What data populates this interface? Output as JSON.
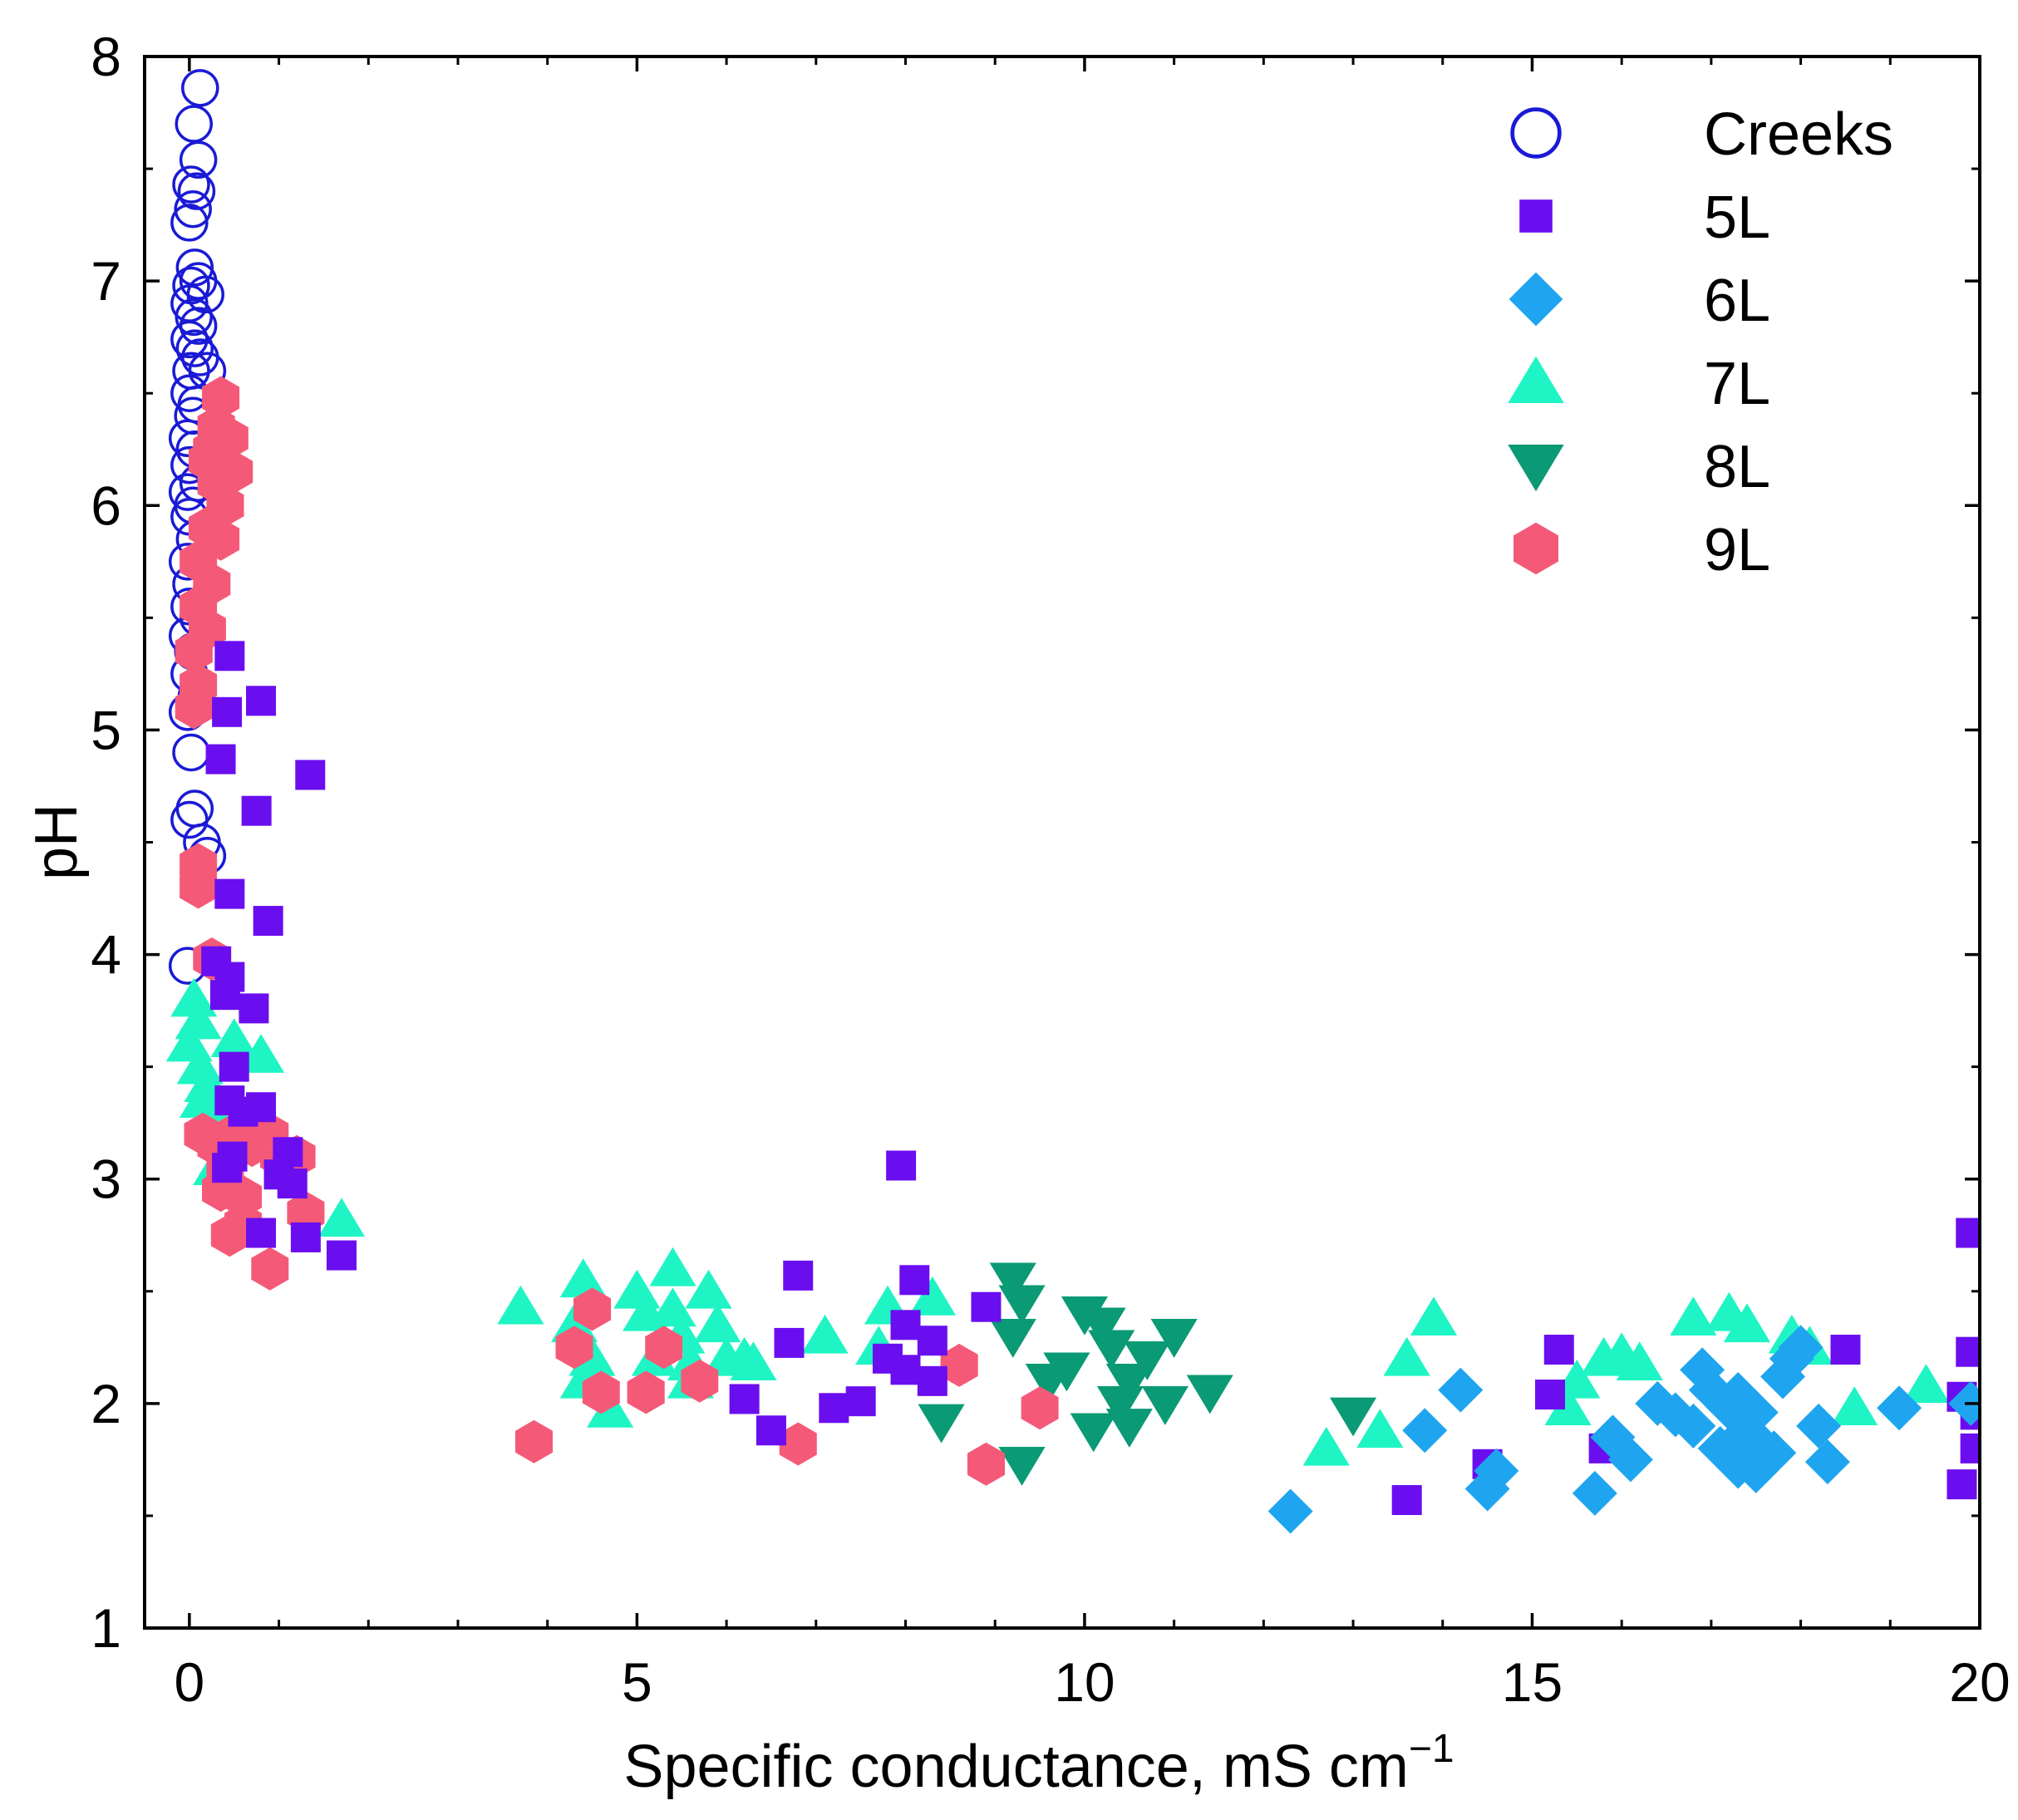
{
  "chart_data": {
    "type": "scatter",
    "title": "",
    "xlabel": "Specific conductance, mS cm",
    "xlabel_superscript": "−1",
    "ylabel": "pH",
    "xlim": [
      -0.5,
      20
    ],
    "ylim": [
      1,
      8
    ],
    "xticks": [
      0,
      5,
      10,
      15,
      20
    ],
    "yticks": [
      1,
      2,
      3,
      4,
      5,
      6,
      7,
      8
    ],
    "x_tick_labels": [
      "0",
      "5",
      "10",
      "15",
      "20"
    ],
    "y_tick_labels": [
      "1",
      "2",
      "3",
      "4",
      "5",
      "6",
      "7",
      "8"
    ],
    "legend_position": "top-right",
    "series": [
      {
        "name": "Creeks",
        "marker": "circle-open",
        "color": "#1a1ad6",
        "points": [
          [
            0.12,
            7.86
          ],
          [
            0.05,
            7.7
          ],
          [
            0.1,
            7.54
          ],
          [
            0.02,
            7.43
          ],
          [
            0.08,
            7.4
          ],
          [
            0.04,
            7.32
          ],
          [
            0.0,
            7.26
          ],
          [
            0.06,
            7.06
          ],
          [
            0.1,
            7.0
          ],
          [
            0.02,
            6.98
          ],
          [
            0.18,
            6.94
          ],
          [
            0.0,
            6.9
          ],
          [
            0.05,
            6.84
          ],
          [
            0.1,
            6.8
          ],
          [
            0.0,
            6.74
          ],
          [
            0.06,
            6.7
          ],
          [
            0.12,
            6.66
          ],
          [
            0.02,
            6.6
          ],
          [
            0.2,
            6.6
          ],
          [
            0.0,
            6.5
          ],
          [
            0.08,
            6.45
          ],
          [
            0.04,
            6.4
          ],
          [
            -0.02,
            6.3
          ],
          [
            0.06,
            6.25
          ],
          [
            0.0,
            6.18
          ],
          [
            0.1,
            6.1
          ],
          [
            -0.02,
            6.06
          ],
          [
            0.04,
            6.0
          ],
          [
            0.0,
            5.95
          ],
          [
            0.06,
            5.85
          ],
          [
            -0.02,
            5.75
          ],
          [
            0.02,
            5.65
          ],
          [
            0.0,
            5.55
          ],
          [
            0.1,
            5.5
          ],
          [
            -0.02,
            5.42
          ],
          [
            0.04,
            5.35
          ],
          [
            0.0,
            5.25
          ],
          [
            0.08,
            5.15
          ],
          [
            -0.02,
            5.08
          ],
          [
            0.02,
            4.9
          ],
          [
            0.06,
            4.65
          ],
          [
            0.0,
            4.6
          ],
          [
            0.14,
            4.5
          ],
          [
            0.2,
            4.44
          ],
          [
            -0.02,
            3.95
          ]
        ]
      },
      {
        "name": "5L",
        "marker": "square",
        "color": "#6a0ef0",
        "points": [
          [
            0.45,
            5.33
          ],
          [
            0.42,
            5.08
          ],
          [
            0.8,
            5.13
          ],
          [
            0.35,
            4.87
          ],
          [
            1.35,
            4.8
          ],
          [
            0.75,
            4.64
          ],
          [
            0.45,
            4.27
          ],
          [
            0.88,
            4.15
          ],
          [
            0.3,
            3.97
          ],
          [
            0.45,
            3.9
          ],
          [
            0.4,
            3.82
          ],
          [
            0.72,
            3.76
          ],
          [
            0.5,
            3.5
          ],
          [
            0.45,
            3.35
          ],
          [
            0.6,
            3.3
          ],
          [
            0.48,
            3.1
          ],
          [
            0.8,
            3.32
          ],
          [
            1.1,
            3.12
          ],
          [
            0.42,
            3.05
          ],
          [
            1.0,
            3.02
          ],
          [
            1.15,
            2.98
          ],
          [
            0.8,
            2.76
          ],
          [
            1.3,
            2.74
          ],
          [
            1.7,
            2.66
          ],
          [
            7.95,
            3.06
          ],
          [
            6.8,
            2.57
          ],
          [
            8.1,
            2.55
          ],
          [
            8.9,
            2.43
          ],
          [
            6.7,
            2.27
          ],
          [
            8.0,
            2.35
          ],
          [
            7.8,
            2.2
          ],
          [
            8.0,
            2.15
          ],
          [
            8.3,
            2.28
          ],
          [
            8.3,
            2.1
          ],
          [
            6.2,
            2.02
          ],
          [
            6.5,
            1.88
          ],
          [
            7.2,
            1.98
          ],
          [
            7.5,
            2.01
          ],
          [
            15.3,
            2.24
          ],
          [
            15.2,
            2.04
          ],
          [
            18.5,
            2.24
          ],
          [
            13.6,
            1.57
          ],
          [
            14.5,
            1.73
          ],
          [
            15.8,
            1.8
          ],
          [
            19.9,
            2.76
          ],
          [
            19.9,
            2.23
          ],
          [
            19.8,
            2.03
          ],
          [
            19.8,
            1.64
          ],
          [
            19.95,
            1.95
          ],
          [
            19.95,
            1.8
          ]
        ]
      },
      {
        "name": "6L",
        "marker": "diamond",
        "color": "#1fa5ef",
        "points": [
          [
            12.3,
            1.52
          ],
          [
            13.8,
            1.88
          ],
          [
            14.2,
            2.06
          ],
          [
            14.6,
            1.7
          ],
          [
            14.5,
            1.62
          ],
          [
            15.7,
            1.6
          ],
          [
            15.9,
            1.85
          ],
          [
            16.1,
            1.75
          ],
          [
            16.4,
            2.0
          ],
          [
            16.6,
            1.95
          ],
          [
            16.8,
            1.9
          ],
          [
            16.9,
            2.15
          ],
          [
            17.0,
            2.06
          ],
          [
            17.1,
            1.8
          ],
          [
            17.2,
            1.98
          ],
          [
            17.3,
            2.04
          ],
          [
            17.3,
            1.72
          ],
          [
            17.4,
            1.88
          ],
          [
            17.5,
            1.96
          ],
          [
            17.5,
            1.7
          ],
          [
            17.6,
            1.8
          ],
          [
            17.7,
            1.78
          ],
          [
            17.8,
            2.12
          ],
          [
            17.9,
            2.2
          ],
          [
            18.0,
            2.25
          ],
          [
            18.2,
            1.9
          ],
          [
            18.3,
            1.74
          ],
          [
            19.1,
            1.98
          ],
          [
            19.9,
            2.0
          ]
        ]
      },
      {
        "name": "7L",
        "marker": "triangle-up",
        "color": "#1ff5c4",
        "points": [
          [
            0.05,
            3.8
          ],
          [
            0.1,
            3.7
          ],
          [
            0.0,
            3.6
          ],
          [
            0.12,
            3.5
          ],
          [
            0.2,
            3.42
          ],
          [
            0.15,
            3.35
          ],
          [
            0.25,
            3.3
          ],
          [
            0.5,
            3.62
          ],
          [
            0.8,
            3.55
          ],
          [
            0.4,
            3.2
          ],
          [
            0.6,
            3.25
          ],
          [
            0.3,
            3.05
          ],
          [
            1.7,
            2.82
          ],
          [
            3.7,
            2.43
          ],
          [
            4.3,
            2.35
          ],
          [
            4.4,
            2.55
          ],
          [
            4.5,
            2.2
          ],
          [
            4.4,
            2.1
          ],
          [
            4.7,
            1.97
          ],
          [
            5.0,
            2.5
          ],
          [
            5.1,
            2.4
          ],
          [
            5.2,
            2.2
          ],
          [
            5.4,
            2.6
          ],
          [
            5.4,
            2.42
          ],
          [
            5.5,
            2.3
          ],
          [
            5.6,
            2.1
          ],
          [
            5.6,
            2.18
          ],
          [
            5.8,
            2.5
          ],
          [
            5.9,
            2.35
          ],
          [
            6.0,
            2.2
          ],
          [
            6.2,
            2.2
          ],
          [
            6.3,
            2.18
          ],
          [
            7.1,
            2.3
          ],
          [
            7.8,
            2.43
          ],
          [
            7.7,
            2.25
          ],
          [
            8.3,
            2.47
          ],
          [
            12.7,
            1.8
          ],
          [
            13.3,
            1.88
          ],
          [
            13.6,
            2.2
          ],
          [
            13.9,
            2.38
          ],
          [
            15.4,
            1.98
          ],
          [
            15.5,
            2.1
          ],
          [
            15.8,
            2.2
          ],
          [
            16.0,
            2.22
          ],
          [
            16.2,
            2.18
          ],
          [
            16.8,
            2.38
          ],
          [
            17.2,
            2.4
          ],
          [
            17.4,
            2.35
          ],
          [
            17.9,
            2.3
          ],
          [
            18.1,
            2.25
          ],
          [
            18.6,
            1.98
          ],
          [
            19.4,
            2.08
          ]
        ]
      },
      {
        "name": "8L",
        "marker": "triangle-down",
        "color": "#0a9a75",
        "points": [
          [
            8.4,
            1.92
          ],
          [
            9.2,
            2.55
          ],
          [
            9.3,
            2.45
          ],
          [
            9.2,
            2.3
          ],
          [
            9.3,
            1.73
          ],
          [
            9.6,
            2.1
          ],
          [
            9.8,
            2.15
          ],
          [
            10.0,
            2.4
          ],
          [
            10.2,
            2.35
          ],
          [
            10.3,
            2.25
          ],
          [
            10.4,
            2.0
          ],
          [
            10.5,
            2.1
          ],
          [
            10.1,
            1.88
          ],
          [
            10.5,
            1.9
          ],
          [
            10.7,
            2.2
          ],
          [
            10.9,
            2.0
          ],
          [
            11.0,
            2.3
          ],
          [
            11.4,
            2.05
          ],
          [
            13.0,
            1.95
          ]
        ]
      },
      {
        "name": "9L",
        "marker": "hexagon",
        "color": "#f45a78",
        "points": [
          [
            0.35,
            6.48
          ],
          [
            0.3,
            6.35
          ],
          [
            0.25,
            6.25
          ],
          [
            0.45,
            6.3
          ],
          [
            0.2,
            6.2
          ],
          [
            0.5,
            6.15
          ],
          [
            0.3,
            6.1
          ],
          [
            0.4,
            6.0
          ],
          [
            0.2,
            5.9
          ],
          [
            0.35,
            5.85
          ],
          [
            0.1,
            5.75
          ],
          [
            0.25,
            5.65
          ],
          [
            0.1,
            5.55
          ],
          [
            0.2,
            5.45
          ],
          [
            0.05,
            5.35
          ],
          [
            0.1,
            5.2
          ],
          [
            0.05,
            5.1
          ],
          [
            0.1,
            4.4
          ],
          [
            0.1,
            4.3
          ],
          [
            0.25,
            3.98
          ],
          [
            0.15,
            3.2
          ],
          [
            0.3,
            3.15
          ],
          [
            0.5,
            3.2
          ],
          [
            0.4,
            3.05
          ],
          [
            0.7,
            3.15
          ],
          [
            0.9,
            3.2
          ],
          [
            1.0,
            3.1
          ],
          [
            1.2,
            3.1
          ],
          [
            0.35,
            2.95
          ],
          [
            0.6,
            2.92
          ],
          [
            1.3,
            2.85
          ],
          [
            0.45,
            2.75
          ],
          [
            0.6,
            2.8
          ],
          [
            0.9,
            2.6
          ],
          [
            3.85,
            1.83
          ],
          [
            4.5,
            2.42
          ],
          [
            4.3,
            2.25
          ],
          [
            4.6,
            2.05
          ],
          [
            5.1,
            2.05
          ],
          [
            5.3,
            2.25
          ],
          [
            5.7,
            2.1
          ],
          [
            6.8,
            1.82
          ],
          [
            8.6,
            2.17
          ],
          [
            8.9,
            1.73
          ],
          [
            9.5,
            1.98
          ]
        ]
      }
    ]
  }
}
